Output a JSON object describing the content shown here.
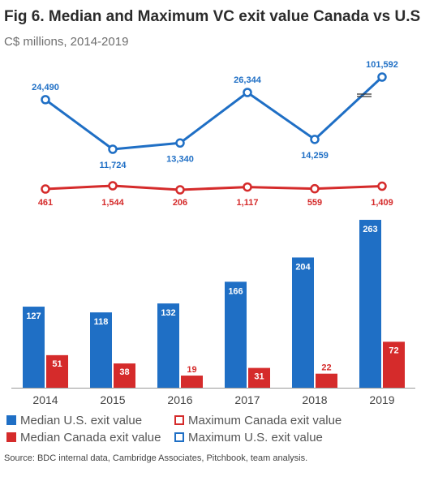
{
  "title": "Fig 6. Median and Maximum VC exit value Canada vs U.S.",
  "subtitle": "C$ millions, 2014-2019",
  "source": "Source: BDC internal data, Cambridge Associates, Pitchbook, team analysis.",
  "colors": {
    "us": "#1f6fc5",
    "canada": "#d52b2b",
    "axis": "#999999",
    "text_dark": "#444444"
  },
  "chart_data": {
    "type": "bar+line",
    "categories": [
      "2014",
      "2015",
      "2016",
      "2017",
      "2018",
      "2019"
    ],
    "lines": [
      {
        "name": "Maximum U.S. exit value",
        "values": [
          24490,
          11724,
          13340,
          26344,
          14259,
          101592
        ],
        "labels": [
          "24,490",
          "11,724",
          "13,340",
          "26,344",
          "14,259",
          "101,592"
        ],
        "axis_break_before_last": true
      },
      {
        "name": "Maximum Canada exit value",
        "values": [
          461,
          1544,
          206,
          1117,
          559,
          1409
        ],
        "labels": [
          "461",
          "1,544",
          "206",
          "1,117",
          "559",
          "1,409"
        ]
      }
    ],
    "bars": [
      {
        "name": "Median U.S. exit value",
        "values": [
          127,
          118,
          132,
          166,
          204,
          263
        ]
      },
      {
        "name": "Median Canada exit value",
        "values": [
          51,
          38,
          19,
          31,
          22,
          72
        ]
      }
    ],
    "legend": [
      {
        "label": "Median U.S. exit value",
        "style": "filled",
        "color": "#1f6fc5"
      },
      {
        "label": "Maximum Canada exit value",
        "style": "outline",
        "color": "#d52b2b"
      },
      {
        "label": "Median Canada exit value",
        "style": "filled",
        "color": "#d52b2b"
      },
      {
        "label": "Maximum U.S. exit value",
        "style": "outline",
        "color": "#1f6fc5"
      }
    ],
    "legend_position": "bottom",
    "grid": false
  }
}
